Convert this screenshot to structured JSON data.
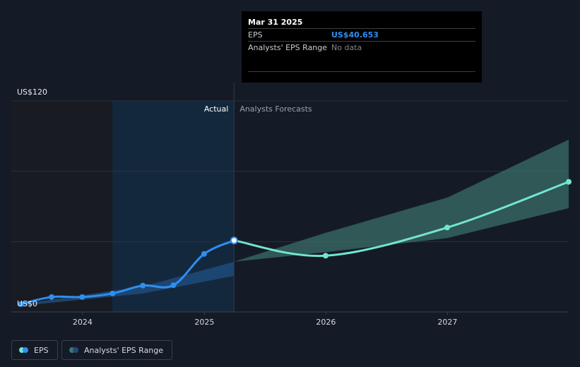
{
  "tooltip": {
    "date": "Mar 31 2025",
    "eps_label": "EPS",
    "eps_value": "US$40.653",
    "range_label": "Analysts' EPS Range",
    "range_value": "No data"
  },
  "legend": {
    "eps_label": "EPS",
    "range_label": "Analysts' EPS Range"
  },
  "colors": {
    "actual_line": "#2f8ef0",
    "forecast_line": "#73e5d2",
    "forecast_band": "#3d7a72",
    "actual_band": "#1f4a7a",
    "background": "#151b26",
    "past_shade": "#181c22",
    "actual_shade": "#14283d"
  },
  "chart_data": {
    "type": "line",
    "title": "",
    "xlabel": "",
    "ylabel": "",
    "y_unit": "US$",
    "ylim": [
      0,
      120
    ],
    "y_tick_labels": [
      {
        "value": 120,
        "label": "US$120"
      },
      {
        "value": 0,
        "label": "US$0"
      }
    ],
    "y_gridlines": [
      0,
      40,
      80,
      120
    ],
    "xlim": [
      "2023-06-01",
      "2027-12-31"
    ],
    "x_ticks": [
      {
        "date": "2024-01-01",
        "label": "2024"
      },
      {
        "date": "2025-01-01",
        "label": "2025"
      },
      {
        "date": "2026-01-01",
        "label": "2026"
      },
      {
        "date": "2027-01-01",
        "label": "2027"
      }
    ],
    "regions": {
      "past_end": "2024-03-31",
      "actual_label": "Actual",
      "forecast_label": "Analysts Forecasts",
      "divider": "2025-03-31"
    },
    "series": [
      {
        "name": "EPS",
        "kind": "actual",
        "points": [
          {
            "x": "2023-06-30",
            "y": 4.5
          },
          {
            "x": "2023-09-30",
            "y": 8.5
          },
          {
            "x": "2023-12-31",
            "y": 8.5
          },
          {
            "x": "2024-03-31",
            "y": 10.5
          },
          {
            "x": "2024-06-30",
            "y": 15
          },
          {
            "x": "2024-09-30",
            "y": 15.2
          },
          {
            "x": "2024-12-31",
            "y": 33
          },
          {
            "x": "2025-03-31",
            "y": 40.653
          }
        ]
      },
      {
        "name": "EPS",
        "kind": "forecast",
        "points": [
          {
            "x": "2025-03-31",
            "y": 40.653
          },
          {
            "x": "2025-12-31",
            "y": 32
          },
          {
            "x": "2026-12-31",
            "y": 48
          },
          {
            "x": "2027-12-31",
            "y": 74
          }
        ]
      }
    ],
    "actual_range": [
      {
        "x": "2023-06-30",
        "low": 3.5,
        "high": 4.5
      },
      {
        "x": "2024-06-30",
        "low": 10.5,
        "high": 14.5
      },
      {
        "x": "2025-03-31",
        "low": 20.5,
        "high": 28.5
      }
    ],
    "forecast_range": [
      {
        "x": "2025-03-31",
        "low": 28.6,
        "high": 28.6
      },
      {
        "x": "2025-12-31",
        "low": 34,
        "high": 45
      },
      {
        "x": "2026-12-31",
        "low": 42,
        "high": 65
      },
      {
        "x": "2027-12-31",
        "low": 59,
        "high": 98
      }
    ]
  }
}
